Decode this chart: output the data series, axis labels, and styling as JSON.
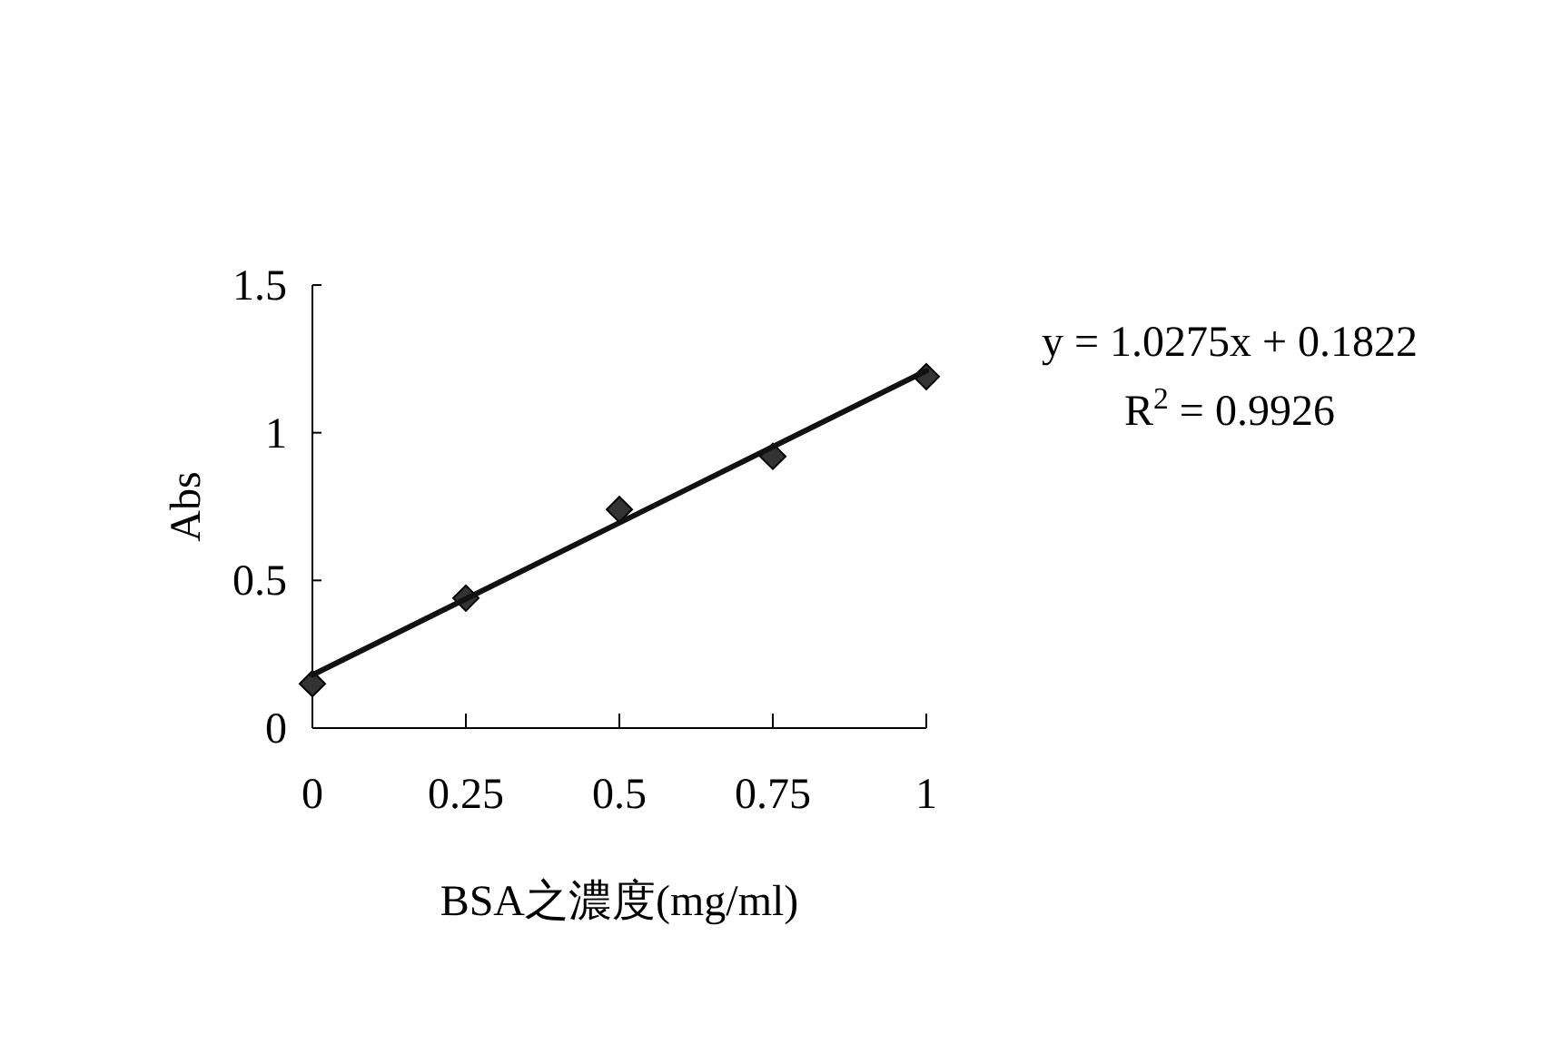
{
  "chart_data": {
    "type": "scatter",
    "xlabel": "BSA之濃度(mg/ml)",
    "ylabel": "Abs",
    "x": [
      0,
      0.25,
      0.5,
      0.75,
      1
    ],
    "series": [
      {
        "color": "#333333",
        "marker": "diamond",
        "values": [
          0.15,
          0.44,
          0.74,
          0.92,
          1.19
        ]
      },
      {
        "type": "line",
        "color": "#111111",
        "marker": "none",
        "line_style": "solid",
        "x": [
          0,
          1
        ],
        "values": [
          0.18,
          1.21
        ]
      }
    ],
    "xlim": [
      0,
      1
    ],
    "xticks": [
      0,
      0.25,
      0.5,
      0.75,
      1
    ],
    "ylim": [
      0,
      1.5
    ],
    "yticks": [
      0,
      0.5,
      1,
      1.5
    ],
    "grid": false,
    "annotations": [
      "y = 1.0275x + 0.1822",
      "R$^{2}$ = 0.9926"
    ]
  }
}
